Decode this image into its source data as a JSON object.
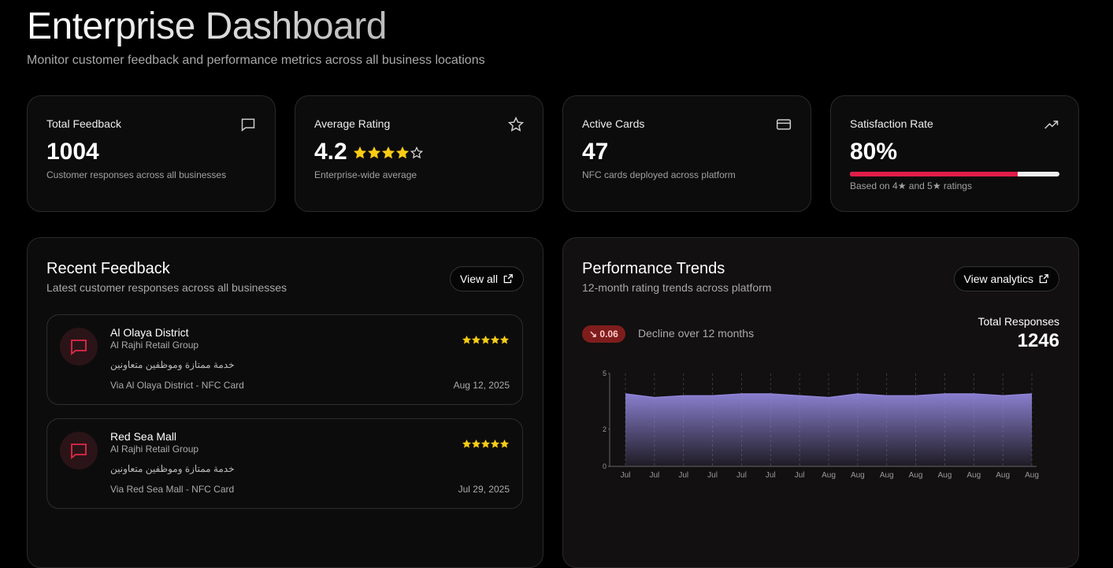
{
  "header": {
    "title": "Enterprise Dashboard",
    "subtitle": "Monitor customer feedback and performance metrics across all business locations"
  },
  "stats": [
    {
      "label": "Total Feedback",
      "value": "1004",
      "note": "Customer responses across all businesses"
    },
    {
      "label": "Average Rating",
      "value": 4.2,
      "note": "Enterprise-wide average"
    },
    {
      "label": "Active Cards",
      "value": "47",
      "note": "NFC cards deployed across platform"
    },
    {
      "label": "Satisfaction Rate",
      "value": "80%",
      "progress": 80,
      "note": "Based on 4★ and 5★ ratings"
    }
  ],
  "recent": {
    "title": "Recent Feedback",
    "subtitle": "Latest customer responses across all businesses",
    "button": "View all",
    "items": [
      {
        "location": "Al Olaya District",
        "group": "Al Rajhi Retail Group",
        "rating": 5,
        "comment": "خدمة ممتازة وموظفين متعاونين",
        "source": "Via Al Olaya District - NFC Card",
        "date": "Aug 12, 2025"
      },
      {
        "location": "Red Sea Mall",
        "group": "Al Rajhi Retail Group",
        "rating": 5,
        "comment": "خدمة ممتازة وموظفين متعاونين",
        "source": "Via Red Sea Mall - NFC Card",
        "date": "Jul 29, 2025"
      }
    ]
  },
  "trends": {
    "title": "Performance Trends",
    "subtitle": "12-month rating trends across platform",
    "button": "View analytics",
    "badge": "↘ 0.06",
    "badge_note": "Decline over 12 months",
    "total_label": "Total Responses",
    "total": "1246"
  },
  "chart_data": {
    "type": "area",
    "color": "#8f84d8",
    "categories": [
      "Jul",
      "Jul",
      "Jul",
      "Jul",
      "Jul",
      "Jul",
      "Jul",
      "Aug",
      "Aug",
      "Aug",
      "Aug",
      "Aug",
      "Aug",
      "Aug",
      "Aug"
    ],
    "values": [
      3.9,
      3.7,
      3.8,
      3.8,
      3.9,
      3.9,
      3.8,
      3.7,
      3.9,
      3.8,
      3.8,
      3.9,
      3.9,
      3.8,
      3.9
    ],
    "ylim": [
      0,
      5
    ],
    "yticks": [
      0,
      2,
      5
    ],
    "grid": true
  }
}
